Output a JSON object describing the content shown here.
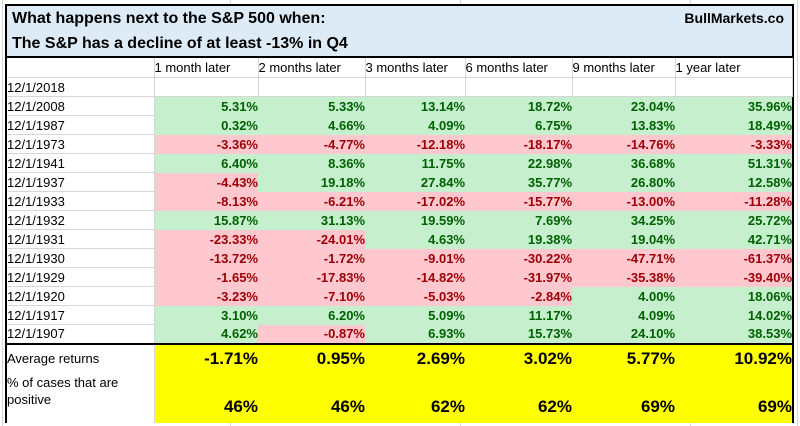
{
  "title": {
    "line1": "What happens next to the S&P 500 when:",
    "line2": "The S&P has a decline of at least -13% in Q4",
    "brand": "BullMarkets.co"
  },
  "chart_data": {
    "type": "table",
    "columns": [
      "1 month later",
      "2 months later",
      "3 months later",
      "6 months later",
      "9 months later",
      "1 year later"
    ],
    "rows": [
      {
        "label": "12/1/2018",
        "values": [
          "",
          "",
          "",
          "",
          "",
          ""
        ]
      },
      {
        "label": "12/1/2008",
        "values": [
          "5.31%",
          "5.33%",
          "13.14%",
          "18.72%",
          "23.04%",
          "35.96%"
        ]
      },
      {
        "label": "12/1/1987",
        "values": [
          "0.32%",
          "4.66%",
          "4.09%",
          "6.75%",
          "13.83%",
          "18.49%"
        ]
      },
      {
        "label": "12/1/1973",
        "values": [
          "-3.36%",
          "-4.77%",
          "-12.18%",
          "-18.17%",
          "-14.76%",
          "-3.33%"
        ]
      },
      {
        "label": "12/1/1941",
        "values": [
          "6.40%",
          "8.36%",
          "11.75%",
          "22.98%",
          "36.68%",
          "51.31%"
        ]
      },
      {
        "label": "12/1/1937",
        "values": [
          "-4.43%",
          "19.18%",
          "27.84%",
          "35.77%",
          "26.80%",
          "12.58%"
        ]
      },
      {
        "label": "12/1/1933",
        "values": [
          "-8.13%",
          "-6.21%",
          "-17.02%",
          "-15.77%",
          "-13.00%",
          "-11.28%"
        ]
      },
      {
        "label": "12/1/1932",
        "values": [
          "15.87%",
          "31.13%",
          "19.59%",
          "7.69%",
          "34.25%",
          "25.72%"
        ]
      },
      {
        "label": "12/1/1931",
        "values": [
          "-23.33%",
          "-24.01%",
          "4.63%",
          "19.38%",
          "19.04%",
          "42.71%"
        ]
      },
      {
        "label": "12/1/1930",
        "values": [
          "-13.72%",
          "-1.72%",
          "-9.01%",
          "-30.22%",
          "-47.71%",
          "-61.37%"
        ]
      },
      {
        "label": "12/1/1929",
        "values": [
          "-1.65%",
          "-17.83%",
          "-14.82%",
          "-31.97%",
          "-35.38%",
          "-39.40%"
        ]
      },
      {
        "label": "12/1/1920",
        "values": [
          "-3.23%",
          "-7.10%",
          "-5.03%",
          "-2.84%",
          "4.00%",
          "18.06%"
        ]
      },
      {
        "label": "12/1/1917",
        "values": [
          "3.10%",
          "6.20%",
          "5.09%",
          "11.17%",
          "4.09%",
          "14.02%"
        ]
      },
      {
        "label": "12/1/1907",
        "values": [
          "4.62%",
          "-0.87%",
          "6.93%",
          "15.73%",
          "24.10%",
          "38.53%"
        ]
      }
    ],
    "summary": {
      "average_label": "Average returns",
      "average_values": [
        "-1.71%",
        "0.95%",
        "2.69%",
        "3.02%",
        "5.77%",
        "10.92%"
      ],
      "positive_label": "% of cases that are positive",
      "positive_values": [
        "46%",
        "46%",
        "62%",
        "62%",
        "69%",
        "69%"
      ]
    }
  },
  "colors": {
    "pos_bg": "#C6EFCE",
    "pos_text": "#006100",
    "neg_bg": "#FFC7CE",
    "neg_text": "#9C0006",
    "sum_bg": "#FFFF00",
    "title_bg": "#DDEBF7",
    "grid": "#D6D6D6",
    "border": "#000000"
  }
}
